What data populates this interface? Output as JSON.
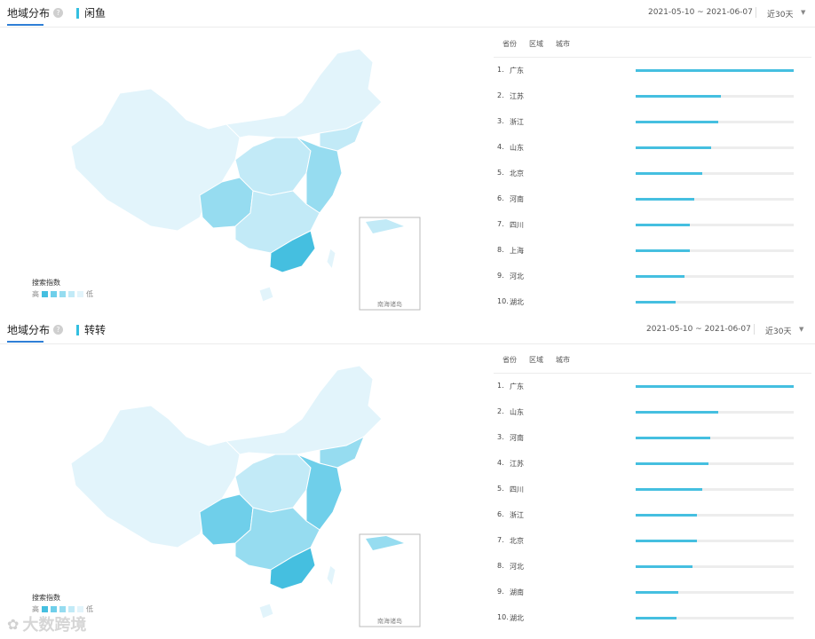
{
  "colors": {
    "accent": "#2f7fd6",
    "bar": "#45bfe0",
    "legend": [
      "#45bfe0",
      "#6fcfea",
      "#96dcf0",
      "#c2eaf7",
      "#e2f4fb"
    ]
  },
  "panels": [
    {
      "tab_label": "地域分布",
      "source_label": "闲鱼",
      "date_range": "2021-05-10 ~ 2021-06-07",
      "period": "近30天",
      "legend": {
        "title": "搜索指数",
        "high": "高",
        "low": "低"
      },
      "rank_tabs": [
        "省份",
        "区域",
        "城市"
      ],
      "map_note": "南海诸岛",
      "ranking": [
        {
          "num": "1.",
          "name": "广东",
          "value": 1.0
        },
        {
          "num": "2.",
          "name": "江苏",
          "value": 0.54
        },
        {
          "num": "3.",
          "name": "浙江",
          "value": 0.52
        },
        {
          "num": "4.",
          "name": "山东",
          "value": 0.48
        },
        {
          "num": "5.",
          "name": "北京",
          "value": 0.42
        },
        {
          "num": "6.",
          "name": "河南",
          "value": 0.37
        },
        {
          "num": "7.",
          "name": "四川",
          "value": 0.34
        },
        {
          "num": "8.",
          "name": "上海",
          "value": 0.34
        },
        {
          "num": "9.",
          "name": "河北",
          "value": 0.31
        },
        {
          "num": "10.",
          "name": "湖北",
          "value": 0.25
        }
      ]
    },
    {
      "tab_label": "地域分布",
      "source_label": "转转",
      "date_range": "2021-05-10 ~ 2021-06-07",
      "period": "近30天",
      "legend": {
        "title": "搜索指数",
        "high": "高",
        "low": "低"
      },
      "rank_tabs": [
        "省份",
        "区域",
        "城市"
      ],
      "map_note": "南海诸岛",
      "ranking": [
        {
          "num": "1.",
          "name": "广东",
          "value": 1.0
        },
        {
          "num": "2.",
          "name": "山东",
          "value": 0.52
        },
        {
          "num": "3.",
          "name": "河南",
          "value": 0.47
        },
        {
          "num": "4.",
          "name": "江苏",
          "value": 0.46
        },
        {
          "num": "5.",
          "name": "四川",
          "value": 0.42
        },
        {
          "num": "6.",
          "name": "浙江",
          "value": 0.39
        },
        {
          "num": "7.",
          "name": "北京",
          "value": 0.39
        },
        {
          "num": "8.",
          "name": "河北",
          "value": 0.36
        },
        {
          "num": "9.",
          "name": "湖南",
          "value": 0.27
        },
        {
          "num": "10.",
          "name": "湖北",
          "value": 0.26
        }
      ]
    }
  ],
  "watermark": "大数跨境"
}
